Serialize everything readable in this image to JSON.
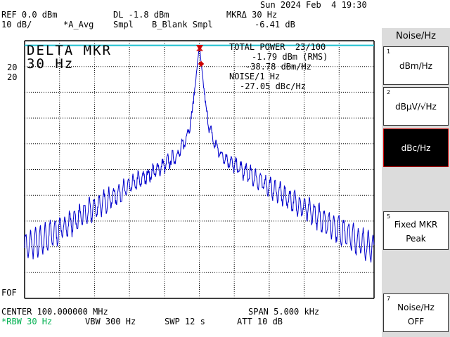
{
  "status": {
    "datetime": "Sun 2024 Feb  4 19:30",
    "ref": "REF 0.0 dBm",
    "dl": "DL -1.8 dBm",
    "mkr_delta": "MKRΔ 30 Hz",
    "scale": "10 dB/",
    "trace_a": "*A_Avg",
    "smpl1": "Smpl",
    "trace_b": "B_Blank Smpl",
    "mkr_value": "-6.41 dB"
  },
  "screen": {
    "delta_label": "DELTA MKR",
    "delta_freq": "30 Hz",
    "total_power": "TOTAL POWER  23/100",
    "power_rms": "-1.79 dBm (RMS)",
    "power_density": "-38.78 dBm/Hz",
    "noise_label": "NOISE/1 Hz",
    "noise_value": "-27.05 dBc/Hz",
    "left_mark_top": "20",
    "left_mark_bottom": "20",
    "fof": "FOF"
  },
  "footer": {
    "center": "CENTER 100.000000 MHz",
    "span": "SPAN 5.000 kHz",
    "rbw": "*RBW 30 Hz",
    "vbw": "VBW 300 Hz",
    "swp": "SWP 12 s",
    "att": "ATT 10 dB"
  },
  "softkeys": {
    "title": "Noise/Hz",
    "items": [
      {
        "num": "1",
        "label": "dBm/Hz",
        "active": false
      },
      {
        "num": "2",
        "label": "dBµV/√Hz",
        "active": false
      },
      {
        "num": "3",
        "label": "dBc/Hz",
        "active": true
      },
      {
        "num": "5",
        "label_1": "Fixed MKR",
        "label_2": "Peak",
        "active": false
      },
      {
        "num": "7",
        "label_1": "Noise/Hz",
        "label_2": "OFF",
        "active": false
      }
    ]
  },
  "colors": {
    "trace": "#0000cc",
    "display_line": "#20c0d0",
    "marker": "#cc0000",
    "rbw_text": "#00b050",
    "active_key_border": "#cc0000"
  },
  "chart_data": {
    "type": "line",
    "ylim": [
      -100,
      0
    ],
    "xlim_hz": [
      -2500,
      2500
    ],
    "display_line_dbm": -1.8,
    "series": [
      {
        "x_hz": [
          -2500,
          -2300,
          -2100,
          -1900,
          -1700,
          -1500,
          -1300,
          -1100,
          -900,
          -700,
          -500,
          -400,
          -300,
          -200,
          -100,
          -50,
          0,
          50,
          100,
          200,
          300,
          400,
          500,
          700,
          900,
          1100,
          1300,
          1500,
          1700,
          1900,
          2100,
          2300,
          2500
        ],
        "y_dbm": [
          -75,
          -73,
          -70,
          -67,
          -64,
          -61,
          -58,
          -55,
          -52,
          -49,
          -46,
          -44,
          -42,
          -37,
          -27,
          -15,
          -1.8,
          -15,
          -27,
          -37,
          -42,
          -44,
          -46,
          -49,
          -52,
          -55,
          -58,
          -61,
          -64,
          -67,
          -70,
          -73,
          -76
        ]
      }
    ]
  }
}
